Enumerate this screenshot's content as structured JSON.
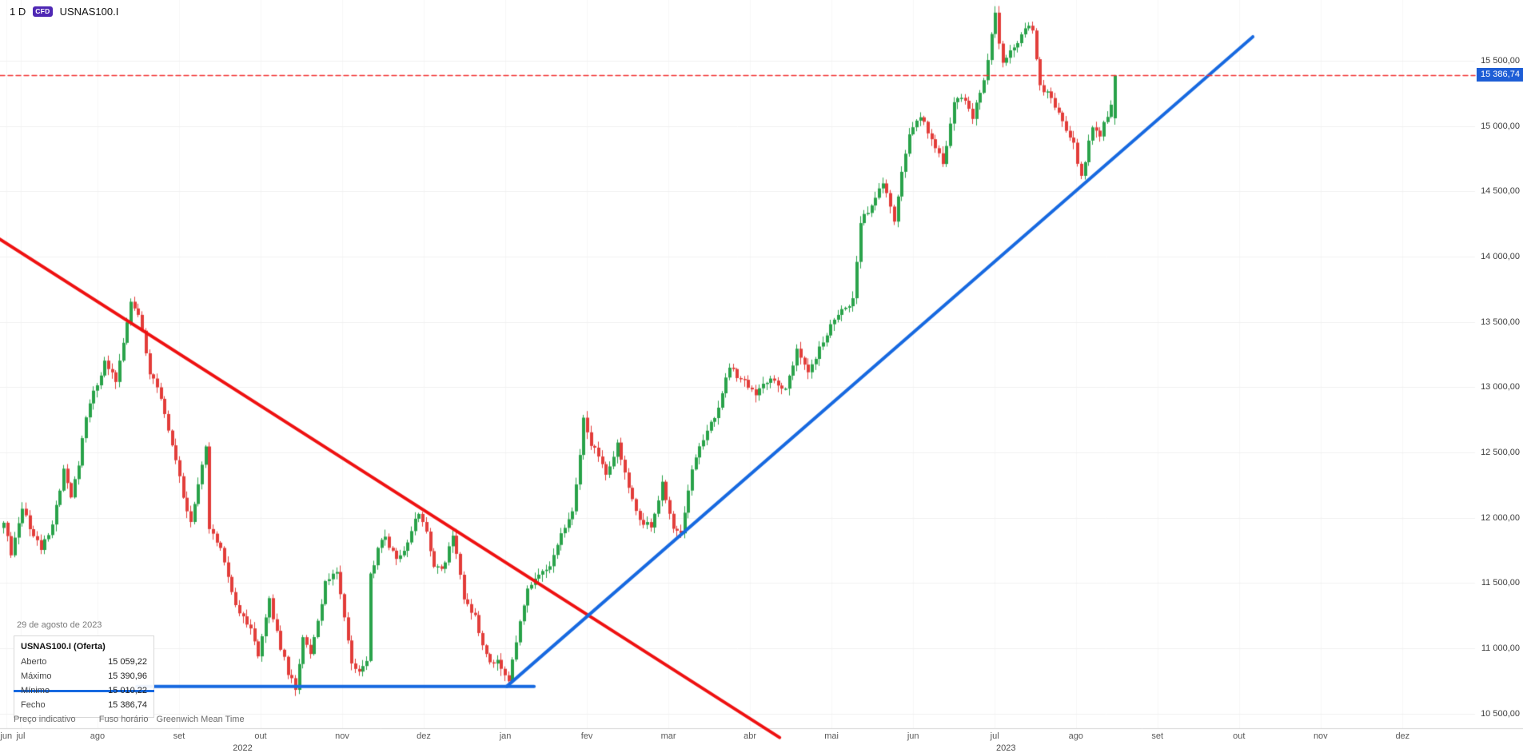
{
  "header": {
    "timeframe": "1 D",
    "instrument_badge": "CFD",
    "instrument": "USNAS100.I"
  },
  "tooltip": {
    "date": "29 de agosto de 2023",
    "title": "USNAS100.I (Oferta)",
    "rows": [
      {
        "label": "Aberto",
        "value": "15 059,22",
        "highlight": false
      },
      {
        "label": "Máximo",
        "value": "15 390,96",
        "highlight": false
      },
      {
        "label": "Mínimo",
        "value": "15 010,22",
        "highlight": true
      },
      {
        "label": "Fecho",
        "value": "15 386,74",
        "highlight": false
      }
    ]
  },
  "footer": {
    "price_note": "Preço indicativo",
    "timezone_label": "Fuso horário",
    "timezone_value": "Greenwich Mean Time"
  },
  "chart_data": {
    "type": "candlestick",
    "title": "USNAS100.I daily CFD chart",
    "interval": "1D",
    "current_price": 15386.74,
    "current_price_label": "15 386,74",
    "last_candle": {
      "open": 15059.22,
      "high": 15390.96,
      "low": 15010.22,
      "close": 15386.74
    },
    "ylim": [
      10390,
      15965
    ],
    "y_axis": {
      "values": [
        15500,
        15000,
        14500,
        14000,
        13500,
        13000,
        12500,
        12000,
        11500,
        11000,
        10500
      ],
      "labels": [
        "15 500,00",
        "15 000,00",
        "14 500,00",
        "14 000,00",
        "13 500,00",
        "13 000,00",
        "12 500,00",
        "12 000,00",
        "11 500,00",
        "11 000,00",
        "10 500,00"
      ]
    },
    "x_axis": {
      "months": [
        {
          "label": "jun",
          "d": 0.8
        },
        {
          "label": "jul",
          "d": 4.7
        },
        {
          "label": "ago",
          "d": 25.2
        },
        {
          "label": "set",
          "d": 47
        },
        {
          "label": "out",
          "d": 68.8
        },
        {
          "label": "nov",
          "d": 90.6
        },
        {
          "label": "dez",
          "d": 112.4
        },
        {
          "label": "jan",
          "d": 134.2
        },
        {
          "label": "fev",
          "d": 156
        },
        {
          "label": "mar",
          "d": 177.8
        },
        {
          "label": "abr",
          "d": 199.6
        },
        {
          "label": "mai",
          "d": 221.4
        },
        {
          "label": "jun",
          "d": 243.2
        },
        {
          "label": "jul",
          "d": 265
        },
        {
          "label": "ago",
          "d": 286.7
        },
        {
          "label": "set",
          "d": 308.5
        },
        {
          "label": "out",
          "d": 330.3
        },
        {
          "label": "nov",
          "d": 352.1
        },
        {
          "label": "dez",
          "d": 374
        }
      ],
      "years": [
        {
          "label": "2022",
          "d": 64
        },
        {
          "label": "2023",
          "d": 268
        }
      ]
    },
    "anchors": [
      [
        0,
        11950
      ],
      [
        2,
        11720
      ],
      [
        5,
        12050
      ],
      [
        8,
        11880
      ],
      [
        10,
        11740
      ],
      [
        13,
        11960
      ],
      [
        16,
        12360
      ],
      [
        18,
        12150
      ],
      [
        20,
        12420
      ],
      [
        22,
        12760
      ],
      [
        24,
        12960
      ],
      [
        27,
        13180
      ],
      [
        30,
        13060
      ],
      [
        34,
        13660
      ],
      [
        36,
        13560
      ],
      [
        39,
        13120
      ],
      [
        42,
        12930
      ],
      [
        44,
        12650
      ],
      [
        46,
        12460
      ],
      [
        48,
        12150
      ],
      [
        50,
        11980
      ],
      [
        53,
        12420
      ],
      [
        54,
        12550
      ],
      [
        55,
        11900
      ],
      [
        58,
        11790
      ],
      [
        60,
        11550
      ],
      [
        62,
        11330
      ],
      [
        64,
        11250
      ],
      [
        66,
        11140
      ],
      [
        68,
        10960
      ],
      [
        70,
        11250
      ],
      [
        71,
        11360
      ],
      [
        74,
        11010
      ],
      [
        76,
        10820
      ],
      [
        78,
        10700
      ],
      [
        80,
        11090
      ],
      [
        82,
        10980
      ],
      [
        84,
        11190
      ],
      [
        86,
        11510
      ],
      [
        89,
        11590
      ],
      [
        91,
        11220
      ],
      [
        93,
        10860
      ],
      [
        95,
        10800
      ],
      [
        97,
        10920
      ],
      [
        98,
        11560
      ],
      [
        100,
        11760
      ],
      [
        102,
        11860
      ],
      [
        105,
        11660
      ],
      [
        108,
        11810
      ],
      [
        111,
        12050
      ],
      [
        113,
        11880
      ],
      [
        115,
        11640
      ],
      [
        117,
        11590
      ],
      [
        120,
        11860
      ],
      [
        122,
        11580
      ],
      [
        123,
        11360
      ],
      [
        126,
        11240
      ],
      [
        128,
        11000
      ],
      [
        130,
        10880
      ],
      [
        132,
        10920
      ],
      [
        134,
        10790
      ],
      [
        135,
        10740
      ],
      [
        137,
        11060
      ],
      [
        140,
        11460
      ],
      [
        143,
        11560
      ],
      [
        146,
        11620
      ],
      [
        149,
        11860
      ],
      [
        152,
        12060
      ],
      [
        154,
        12480
      ],
      [
        155,
        12760
      ],
      [
        157,
        12550
      ],
      [
        159,
        12480
      ],
      [
        161,
        12310
      ],
      [
        164,
        12560
      ],
      [
        167,
        12210
      ],
      [
        170,
        11960
      ],
      [
        173,
        11940
      ],
      [
        176,
        12260
      ],
      [
        179,
        11930
      ],
      [
        181,
        11900
      ],
      [
        184,
        12360
      ],
      [
        187,
        12610
      ],
      [
        190,
        12760
      ],
      [
        194,
        13160
      ],
      [
        197,
        13060
      ],
      [
        201,
        12950
      ],
      [
        205,
        13090
      ],
      [
        209,
        12980
      ],
      [
        212,
        13290
      ],
      [
        215,
        13090
      ],
      [
        219,
        13360
      ],
      [
        223,
        13560
      ],
      [
        227,
        13660
      ],
      [
        229,
        14260
      ],
      [
        232,
        14390
      ],
      [
        235,
        14560
      ],
      [
        238,
        14290
      ],
      [
        242,
        14960
      ],
      [
        245,
        15090
      ],
      [
        248,
        14890
      ],
      [
        251,
        14710
      ],
      [
        254,
        15190
      ],
      [
        257,
        15210
      ],
      [
        259,
        15060
      ],
      [
        262,
        15360
      ],
      [
        265,
        15850
      ],
      [
        267,
        15460
      ],
      [
        270,
        15610
      ],
      [
        273,
        15760
      ],
      [
        275,
        15730
      ],
      [
        277,
        15310
      ],
      [
        280,
        15210
      ],
      [
        283,
        15030
      ],
      [
        286,
        14860
      ],
      [
        288,
        14610
      ],
      [
        291,
        15010
      ],
      [
        293,
        14930
      ],
      [
        296,
        15160
      ],
      [
        297,
        15386.74
      ]
    ],
    "wick_volatility": 55,
    "close_noise": 25,
    "trendlines": [
      {
        "name": "descending-trendline",
        "color": "#ee1111",
        "width": 4,
        "points": [
          [
            -1,
            14135
          ],
          [
            207.5,
            10316
          ]
        ]
      },
      {
        "name": "support-horizontal-line",
        "color": "#1769e0",
        "width": 4,
        "points": [
          [
            35.7,
            10708
          ],
          [
            141.9,
            10708
          ]
        ]
      },
      {
        "name": "ascending-trendline",
        "color": "#1769e0",
        "width": 4,
        "points": [
          [
            134.6,
            10708
          ],
          [
            334,
            15684
          ]
        ]
      }
    ],
    "colors": {
      "up": "#29a24a",
      "down": "#e23d3a",
      "current_line": "#f23030",
      "price_tag_bg": "#1e5ed6",
      "grid_h": "#f0f0f0",
      "grid_v": "#f7f7f7",
      "axis_line": "#d4d4d4"
    }
  }
}
